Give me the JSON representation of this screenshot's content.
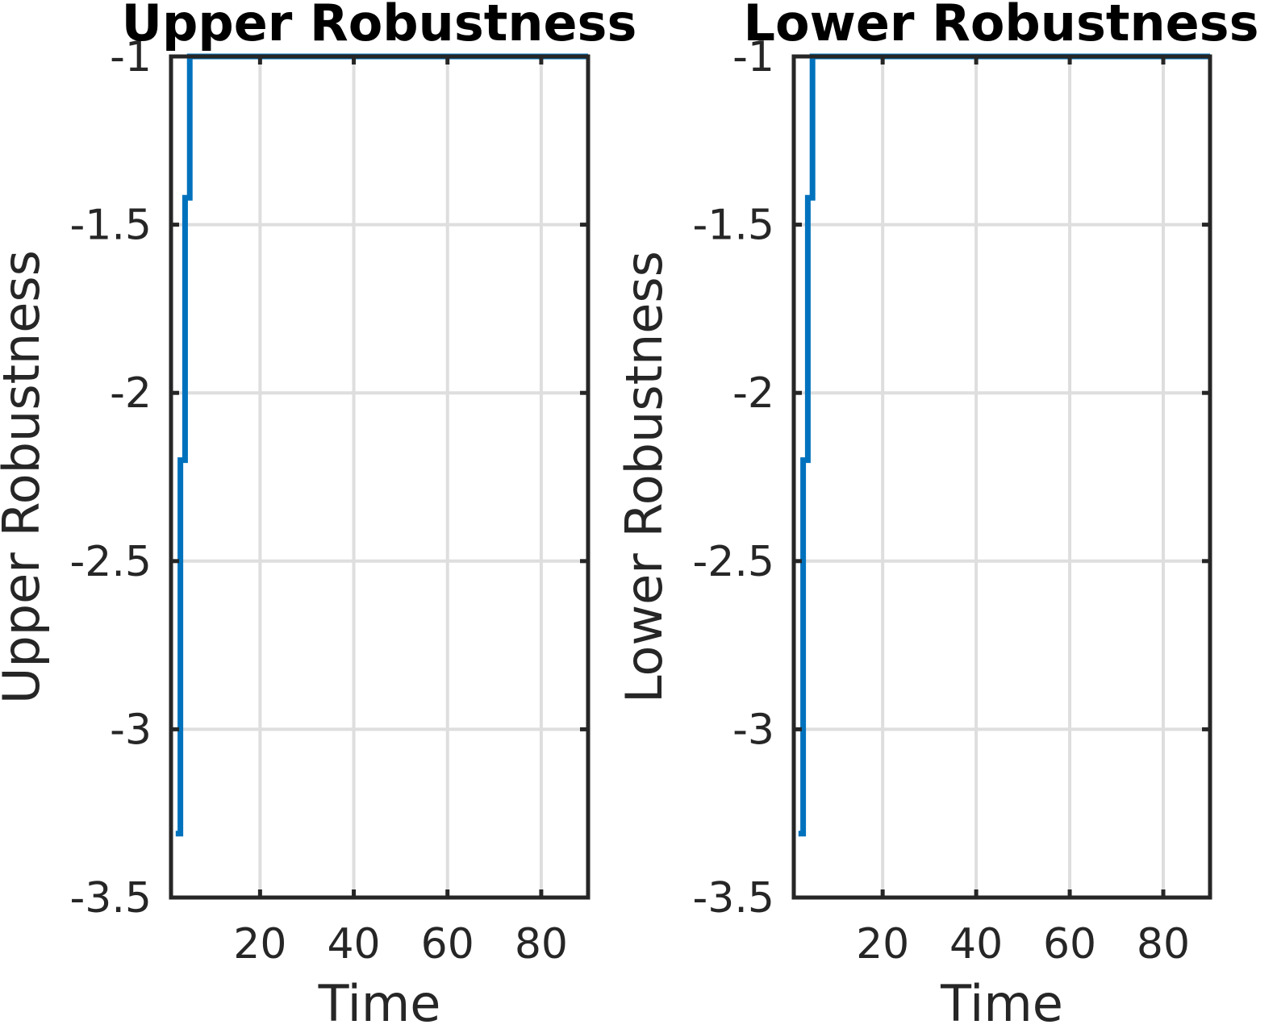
{
  "chart_data": [
    {
      "type": "line",
      "step": true,
      "title": "Upper Robustness",
      "xlabel": "Time",
      "ylabel": "Upper Robustness",
      "xlim": [
        1,
        90
      ],
      "ylim": [
        -3.5,
        -1
      ],
      "xticks": [
        20,
        40,
        60,
        80
      ],
      "xtick_labels": [
        "20",
        "40",
        "60",
        "80"
      ],
      "yticks": [
        -3.5,
        -3,
        -2.5,
        -2,
        -1.5,
        -1
      ],
      "ytick_labels": [
        "-3.5",
        "-3",
        "-2.5",
        "-2",
        "-1.5",
        "-1"
      ],
      "grid": true,
      "color": "#0072BD",
      "x": [
        2,
        3,
        4,
        5,
        90
      ],
      "y": [
        -3.31,
        -2.2,
        -1.42,
        -1,
        -1
      ]
    },
    {
      "type": "line",
      "step": true,
      "title": "Lower Robustness",
      "xlabel": "Time",
      "ylabel": "Lower Robustness",
      "xlim": [
        1,
        90
      ],
      "ylim": [
        -3.5,
        -1
      ],
      "xticks": [
        20,
        40,
        60,
        80
      ],
      "xtick_labels": [
        "20",
        "40",
        "60",
        "80"
      ],
      "yticks": [
        -3.5,
        -3,
        -2.5,
        -2,
        -1.5,
        -1
      ],
      "ytick_labels": [
        "-3.5",
        "-3",
        "-2.5",
        "-2",
        "-1.5",
        "-1"
      ],
      "grid": true,
      "color": "#0072BD",
      "x": [
        2,
        3,
        4,
        5,
        90
      ],
      "y": [
        -3.31,
        -2.2,
        -1.42,
        -1,
        -1
      ]
    }
  ]
}
